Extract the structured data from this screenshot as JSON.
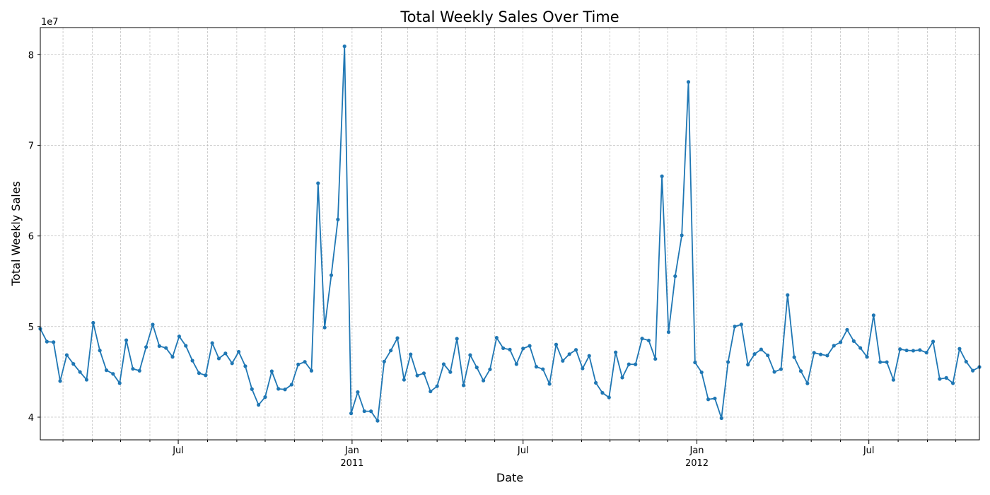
{
  "chart_data": {
    "type": "line",
    "title": "Total Weekly Sales Over Time",
    "xlabel": "Date",
    "ylabel": "Total Weekly Sales",
    "y_offset_text": "1e7",
    "y_scale": 10000000,
    "ylim": [
      37500000,
      83000000
    ],
    "y_ticks": [
      {
        "value": 40000000,
        "label": "4"
      },
      {
        "value": 50000000,
        "label": "5"
      },
      {
        "value": 60000000,
        "label": "6"
      },
      {
        "value": 70000000,
        "label": "7"
      },
      {
        "value": 80000000,
        "label": "8"
      }
    ],
    "xlim": [
      "2010-02-05",
      "2012-10-26"
    ],
    "x_major_ticks": [
      {
        "date": "2010-07-01",
        "label": "Jul"
      },
      {
        "date": "2011-01-01",
        "label": "Jan",
        "sublabel": "2011"
      },
      {
        "date": "2011-07-01",
        "label": "Jul"
      },
      {
        "date": "2012-01-01",
        "label": "Jan",
        "sublabel": "2012"
      },
      {
        "date": "2012-07-01",
        "label": "Jul"
      }
    ],
    "x_minor_ticks": [
      "2010-03-01",
      "2010-04-01",
      "2010-05-01",
      "2010-06-01",
      "2010-08-01",
      "2010-09-01",
      "2010-10-01",
      "2010-11-01",
      "2010-12-01",
      "2011-02-01",
      "2011-03-01",
      "2011-04-01",
      "2011-05-01",
      "2011-06-01",
      "2011-08-01",
      "2011-09-01",
      "2011-10-01",
      "2011-11-01",
      "2011-12-01",
      "2012-02-01",
      "2012-03-01",
      "2012-04-01",
      "2012-05-01",
      "2012-06-01",
      "2012-08-01",
      "2012-09-01",
      "2012-10-01"
    ],
    "grid": true,
    "series": [
      {
        "start_date": "2010-02-05",
        "interval_days": 7,
        "color": "#1f77b4",
        "marker": "circle",
        "values": [
          49750000,
          48340000,
          48280000,
          43990000,
          46860000,
          45880000,
          44990000,
          44130000,
          50420000,
          47360000,
          45180000,
          44780000,
          43760000,
          48500000,
          45340000,
          45130000,
          47740000,
          50220000,
          47850000,
          47640000,
          46660000,
          48920000,
          47880000,
          46240000,
          44860000,
          44620000,
          48180000,
          46480000,
          47040000,
          45950000,
          47220000,
          45630000,
          43100000,
          41360000,
          42220000,
          45070000,
          43130000,
          43060000,
          43590000,
          45820000,
          46110000,
          45130000,
          65820000,
          49900000,
          55670000,
          61820000,
          80930000,
          40420000,
          42770000,
          40660000,
          40650000,
          39600000,
          46140000,
          47360000,
          48730000,
          44130000,
          46940000,
          44600000,
          44850000,
          42840000,
          43420000,
          45850000,
          44980000,
          48660000,
          43520000,
          46860000,
          45490000,
          44040000,
          45280000,
          48770000,
          47610000,
          47460000,
          45860000,
          47580000,
          47870000,
          45570000,
          45300000,
          43670000,
          48020000,
          46220000,
          46960000,
          47430000,
          45380000,
          46770000,
          43790000,
          42690000,
          42180000,
          47160000,
          44370000,
          45840000,
          45830000,
          48680000,
          48470000,
          46430000,
          66590000,
          49390000,
          55560000,
          60070000,
          77000000,
          46040000,
          44950000,
          41970000,
          42070000,
          39890000,
          46090000,
          50010000,
          50230000,
          45800000,
          46970000,
          47480000,
          46820000,
          45000000,
          45300000,
          53480000,
          46620000,
          45090000,
          43730000,
          47110000,
          46930000,
          46800000,
          47890000,
          48270000,
          49650000,
          48400000,
          47640000,
          46660000,
          51250000,
          46080000,
          46080000,
          44120000,
          47510000,
          47370000,
          47340000,
          47410000,
          47130000,
          48350000,
          44220000,
          44340000,
          43750000,
          47550000,
          46130000,
          45140000,
          45540000
        ]
      }
    ]
  }
}
